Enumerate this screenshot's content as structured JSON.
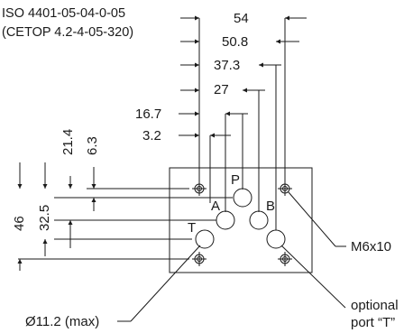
{
  "title": {
    "standard": "ISO 4401-05-04-0-05",
    "cetop": "(CETOP 4.2-4-05-320)"
  },
  "dimensions": {
    "horizontal": [
      "54",
      "50.8",
      "37.3",
      "27",
      "16.7",
      "3.2"
    ],
    "vertical": [
      "21.4",
      "6.3",
      "46",
      "32.5"
    ]
  },
  "ports": {
    "p": "P",
    "a": "A",
    "b": "B",
    "t": "T"
  },
  "callouts": {
    "bolt": "M6x10",
    "port_diameter": "Ø11.2 (max)",
    "optional_line1": "optional",
    "optional_line2": "port “T”"
  },
  "colors": {
    "line": "#1a1a1a",
    "background": "#ffffff"
  }
}
